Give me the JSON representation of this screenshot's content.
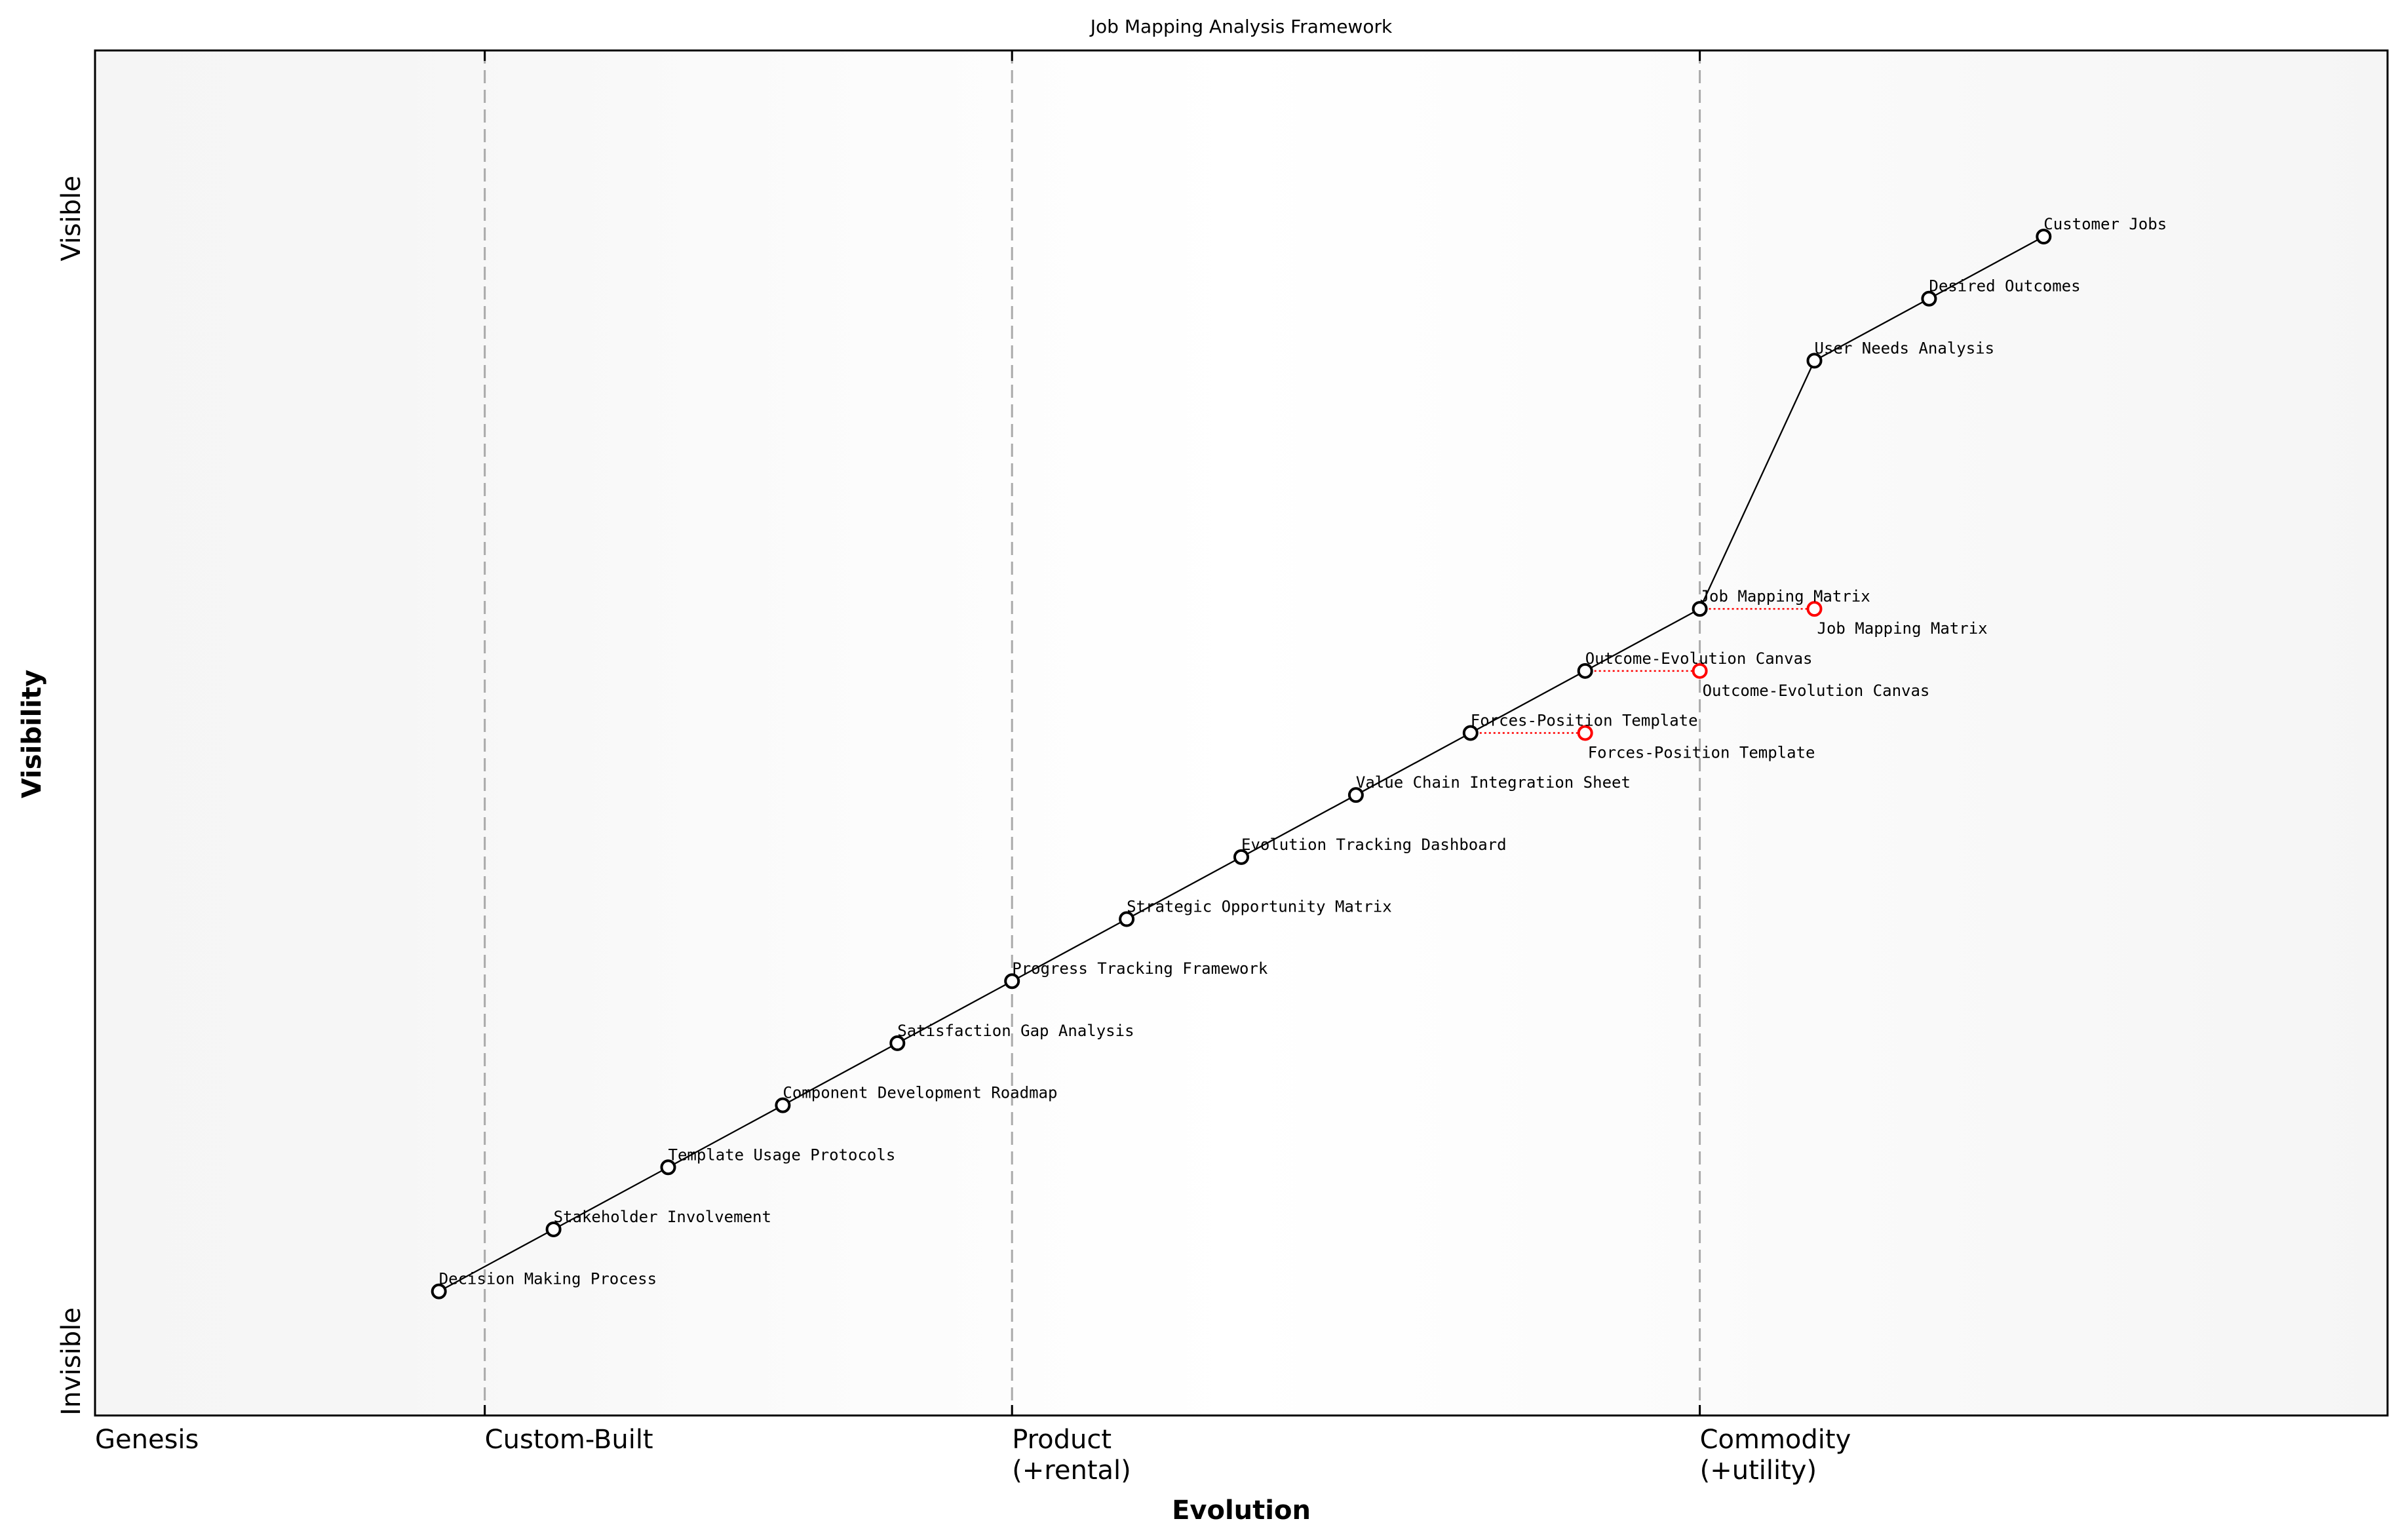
{
  "chart_data": {
    "type": "scatter",
    "title": "Job Mapping Analysis Framework",
    "xlabel": "Evolution",
    "ylabel": "Visibility",
    "xlim": [
      0,
      1
    ],
    "ylim": [
      0,
      1.1
    ],
    "y_end_labels": {
      "top": "Visible",
      "bottom": "Invisible"
    },
    "stages": [
      {
        "label": "Genesis",
        "x": 0
      },
      {
        "label": "Custom-Built",
        "x": 0.17
      },
      {
        "label": "Product\n(+rental)",
        "x": 0.4
      },
      {
        "label": "Commodity\n(+utility)",
        "x": 0.7
      }
    ],
    "stage_boundaries": [
      0.17,
      0.4,
      0.7
    ],
    "components": [
      {
        "name": "Decision Making Process",
        "x": 0.15,
        "y": 0.1
      },
      {
        "name": "Stakeholder Involvement",
        "x": 0.2,
        "y": 0.15
      },
      {
        "name": "Template Usage Protocols",
        "x": 0.25,
        "y": 0.2
      },
      {
        "name": "Component Development Roadmap",
        "x": 0.3,
        "y": 0.25
      },
      {
        "name": "Satisfaction Gap Analysis",
        "x": 0.35,
        "y": 0.3
      },
      {
        "name": "Progress Tracking Framework",
        "x": 0.4,
        "y": 0.35
      },
      {
        "name": "Strategic Opportunity Matrix",
        "x": 0.45,
        "y": 0.4
      },
      {
        "name": "Evolution Tracking Dashboard",
        "x": 0.5,
        "y": 0.45
      },
      {
        "name": "Value Chain Integration Sheet",
        "x": 0.55,
        "y": 0.5
      },
      {
        "name": "Forces-Position Template",
        "x": 0.6,
        "y": 0.55
      },
      {
        "name": "Outcome-Evolution Canvas",
        "x": 0.65,
        "y": 0.6
      },
      {
        "name": "Job Mapping Matrix",
        "x": 0.7,
        "y": 0.65
      },
      {
        "name": "User Needs Analysis",
        "x": 0.75,
        "y": 0.85
      },
      {
        "name": "Desired Outcomes",
        "x": 0.8,
        "y": 0.9
      },
      {
        "name": "Customer Jobs",
        "x": 0.85,
        "y": 0.95
      }
    ],
    "links": [
      [
        "Decision Making Process",
        "Stakeholder Involvement"
      ],
      [
        "Stakeholder Involvement",
        "Template Usage Protocols"
      ],
      [
        "Template Usage Protocols",
        "Component Development Roadmap"
      ],
      [
        "Component Development Roadmap",
        "Satisfaction Gap Analysis"
      ],
      [
        "Satisfaction Gap Analysis",
        "Progress Tracking Framework"
      ],
      [
        "Progress Tracking Framework",
        "Strategic Opportunity Matrix"
      ],
      [
        "Strategic Opportunity Matrix",
        "Evolution Tracking Dashboard"
      ],
      [
        "Evolution Tracking Dashboard",
        "Value Chain Integration Sheet"
      ],
      [
        "Value Chain Integration Sheet",
        "Forces-Position Template"
      ],
      [
        "Forces-Position Template",
        "Outcome-Evolution Canvas"
      ],
      [
        "Outcome-Evolution Canvas",
        "Job Mapping Matrix"
      ],
      [
        "Job Mapping Matrix",
        "User Needs Analysis"
      ],
      [
        "User Needs Analysis",
        "Desired Outcomes"
      ],
      [
        "Desired Outcomes",
        "Customer Jobs"
      ]
    ],
    "evolutions": [
      {
        "name": "Job Mapping Matrix",
        "from_x": 0.7,
        "to_x": 0.75,
        "y": 0.65
      },
      {
        "name": "Outcome-Evolution Canvas",
        "from_x": 0.65,
        "to_x": 0.7,
        "y": 0.6
      },
      {
        "name": "Forces-Position Template",
        "from_x": 0.6,
        "to_x": 0.65,
        "y": 0.55
      }
    ],
    "colors": {
      "component": "#000000",
      "evolution": "#ff0000",
      "stage_line": "#aaaaaa",
      "background_edge": "#f5f5f5"
    },
    "grid": false,
    "legend": "none"
  }
}
